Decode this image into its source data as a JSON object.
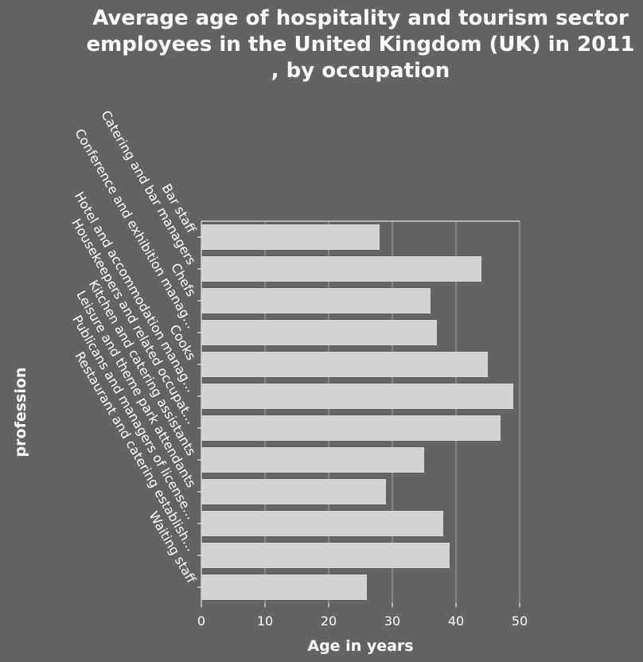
{
  "chart_data": {
    "type": "bar",
    "orientation": "horizontal",
    "title_lines": [
      "Average age of hospitality and tourism sector",
      "employees in the United Kingdom (UK) in 2011",
      ", by occupation"
    ],
    "xlabel": "Age in years",
    "ylabel": "profession",
    "xlim": [
      0,
      50
    ],
    "xticks": [
      0,
      10,
      20,
      30,
      40,
      50
    ],
    "grid": true,
    "categories": [
      "Bar staff",
      "Catering and bar managers",
      "Chefs",
      "Conference and exhibition manag...",
      "Cooks",
      "Hotel and accommodation manag...",
      "Housekeepers and related occupat...",
      "Kitchen and catering assistants",
      "Leisure and theme park attendants",
      "Publicans and managers of license...",
      "Restaurant and catering establish...",
      "Waiting staff"
    ],
    "values": [
      28,
      44,
      36,
      37,
      45,
      49,
      47,
      35,
      29,
      38,
      39,
      26
    ],
    "colors": {
      "background": "#636363",
      "bar": "#d3d3d3",
      "grid": "#a9a9a9",
      "text": "#ffffff"
    }
  }
}
